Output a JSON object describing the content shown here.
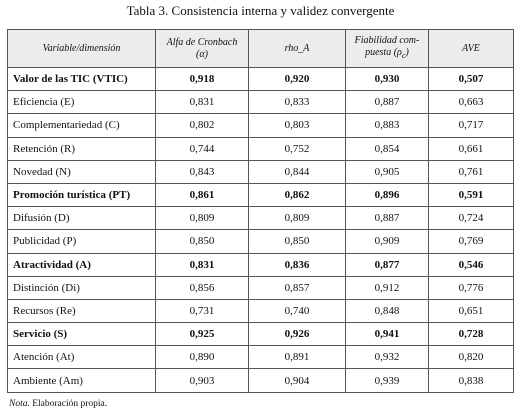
{
  "title": "Tabla 3. Consistencia interna y validez convergente",
  "table": {
    "header": [
      {
        "lines": [
          "Variable/dimensión"
        ]
      },
      {
        "lines": [
          "Alfa de Cronbach",
          "(α)"
        ]
      },
      {
        "lines": [
          "rho_A"
        ]
      },
      {
        "lines": [
          "Fiabilidad com-",
          "puesta (ρ"
        ],
        "subscript": "c",
        "suffix": ")"
      },
      {
        "lines": [
          "AVE"
        ]
      }
    ],
    "rows": [
      {
        "bold": true,
        "cells": [
          "Valor de las TIC (VTIC)",
          "0,918",
          "0,920",
          "0,930",
          "0,507"
        ]
      },
      {
        "bold": false,
        "cells": [
          "Eficiencia (E)",
          "0,831",
          "0,833",
          "0,887",
          "0,663"
        ]
      },
      {
        "bold": false,
        "cells": [
          "Complementariedad (C)",
          "0,802",
          "0,803",
          "0,883",
          "0,717"
        ]
      },
      {
        "bold": false,
        "cells": [
          "Retención (R)",
          "0,744",
          "0,752",
          "0,854",
          "0,661"
        ]
      },
      {
        "bold": false,
        "cells": [
          "Novedad (N)",
          "0,843",
          "0,844",
          "0,905",
          "0,761"
        ]
      },
      {
        "bold": true,
        "cells": [
          "Promoción turística (PT)",
          "0,861",
          "0,862",
          "0,896",
          "0,591"
        ]
      },
      {
        "bold": false,
        "cells": [
          "Difusión (D)",
          "0,809",
          "0,809",
          "0,887",
          "0,724"
        ]
      },
      {
        "bold": false,
        "cells": [
          "Publicidad (P)",
          "0,850",
          "0,850",
          "0,909",
          "0,769"
        ]
      },
      {
        "bold": true,
        "cells": [
          "Atractividad (A)",
          "0,831",
          "0,836",
          "0,877",
          "0,546"
        ]
      },
      {
        "bold": false,
        "cells": [
          "Distinción (Di)",
          "0,856",
          "0,857",
          "0,912",
          "0,776"
        ]
      },
      {
        "bold": false,
        "cells": [
          "Recursos (Re)",
          "0,731",
          "0,740",
          "0,848",
          "0,651"
        ]
      },
      {
        "bold": true,
        "cells": [
          "Servicio (S)",
          "0,925",
          "0,926",
          "0,941",
          "0,728"
        ]
      },
      {
        "bold": false,
        "cells": [
          "Atención (At)",
          "0,890",
          "0,891",
          "0,932",
          "0,820"
        ]
      },
      {
        "bold": false,
        "cells": [
          "Ambiente (Am)",
          "0,903",
          "0,904",
          "0,939",
          "0,838"
        ]
      }
    ]
  },
  "note": {
    "label": "Nota.",
    "text": "Elaboración propia."
  }
}
